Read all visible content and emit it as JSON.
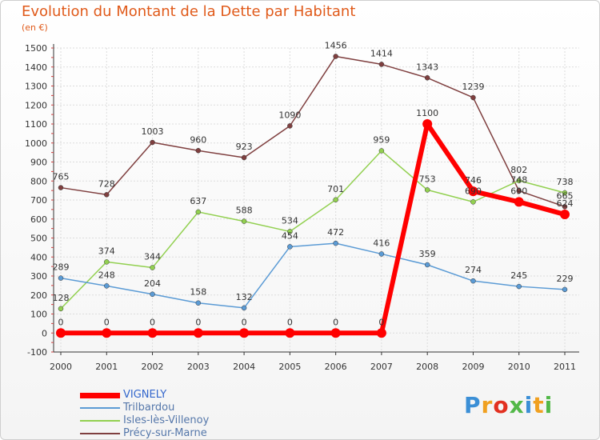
{
  "title": "Evolution du Montant de la Dette par Habitant",
  "subtitle": "(en €)",
  "logo": {
    "text": "Proxiti",
    "letter_colors": [
      "#3b8fd6",
      "#f0a020",
      "#e23020",
      "#52b848",
      "#3b8fd6",
      "#f0a020",
      "#52b848"
    ]
  },
  "chart_data": {
    "type": "line",
    "title": "Evolution du Montant de la Dette par Habitant",
    "subtitle": "(en €)",
    "x": [
      "2000",
      "2001",
      "2002",
      "2003",
      "2004",
      "2005",
      "2006",
      "2007",
      "2008",
      "2009",
      "2010",
      "2011"
    ],
    "ylim": [
      -100,
      1500
    ],
    "yticks": [
      -100,
      0,
      100,
      200,
      300,
      400,
      500,
      600,
      700,
      800,
      900,
      1000,
      1100,
      1200,
      1300,
      1400,
      1500
    ],
    "grid": true,
    "legend_position": "bottom-left",
    "series": [
      {
        "name": "VIGNELY",
        "values": [
          0,
          0,
          0,
          0,
          0,
          0,
          0,
          0,
          1100,
          746,
          690,
          624
        ],
        "labels": [
          "0",
          "0",
          "0",
          "0",
          "0",
          "0",
          "0",
          "0",
          "1100",
          "746",
          "690",
          "624"
        ],
        "color": "#ff0000"
      },
      {
        "name": "Trilbardou",
        "values": [
          289,
          248,
          204,
          158,
          132,
          454,
          472,
          416,
          359,
          274,
          245,
          229
        ],
        "labels": [
          "289",
          "248",
          "204",
          "158",
          "132",
          "454",
          "472",
          "416",
          "359",
          "274",
          "245",
          "229"
        ],
        "color": "#5b9bd5"
      },
      {
        "name": "Isles-lès-Villenoy",
        "values": [
          128,
          374,
          344,
          637,
          588,
          534,
          701,
          959,
          753,
          690,
          802,
          738
        ],
        "labels": [
          "128",
          "374",
          "344",
          "637",
          "588",
          "534",
          "701",
          "959",
          "753",
          "690",
          "802",
          "738"
        ],
        "color": "#92d050"
      },
      {
        "name": "Précy-sur-Marne",
        "values": [
          765,
          728,
          1003,
          960,
          923,
          1090,
          1456,
          1414,
          1343,
          1239,
          748,
          665
        ],
        "labels": [
          "765",
          "728",
          "1003",
          "960",
          "923",
          "1090",
          "1456",
          "1414",
          "1343",
          "1239",
          "748",
          "665"
        ],
        "color": "#7f3f3f"
      }
    ]
  }
}
